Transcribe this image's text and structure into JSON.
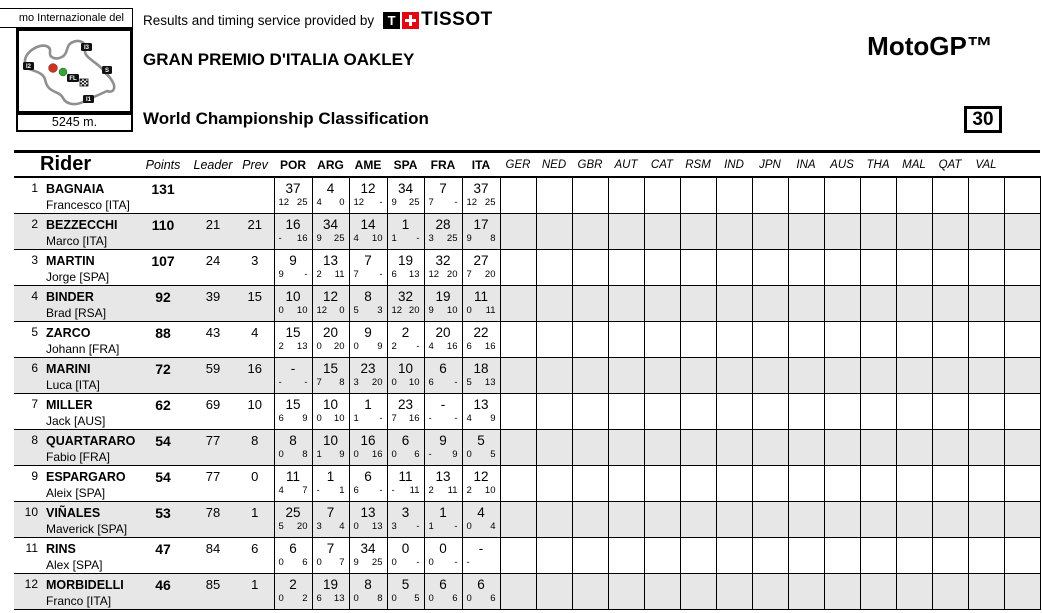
{
  "header": {
    "provider_text": "Results and timing service provided by",
    "tissot": {
      "t_letter": "T",
      "word": "TISSOT"
    },
    "event_title": "GRAN PREMIO D'ITALIA OAKLEY",
    "subtitle": "World Championship Classification",
    "class_label": "MotoGP™",
    "page_number": "30"
  },
  "map": {
    "circuit_name_fragment": "mo Internazionale del",
    "length": "5245 m.",
    "markers": {
      "i1": "I1",
      "i2": "I2",
      "i3": "I3",
      "s": "S",
      "fl": "FL"
    }
  },
  "colors": {
    "row_stripe": "#e7e7e7",
    "tissot_red": "#e30613",
    "track_grey": "#8f8f8f",
    "status_red": "#cc3322",
    "status_green": "#3aa13a"
  },
  "table": {
    "rider_header": "Rider",
    "stat_headers": [
      "Points",
      "Leader",
      "Prev"
    ],
    "completed_races": [
      "POR",
      "ARG",
      "AME",
      "SPA",
      "FRA",
      "ITA"
    ],
    "upcoming_races": [
      "GER",
      "NED",
      "GBR",
      "AUT",
      "CAT",
      "RSM",
      "IND",
      "JPN",
      "INA",
      "AUS",
      "THA",
      "MAL",
      "QAT",
      "VAL"
    ],
    "rows": [
      {
        "pos": "1",
        "surname": "BAGNAIA",
        "firstname": "Francesco [ITA]",
        "points": "131",
        "leader": "",
        "prev": "",
        "races": [
          {
            "total": "37",
            "sprint": "12",
            "race": "25"
          },
          {
            "total": "4",
            "sprint": "4",
            "race": "0"
          },
          {
            "total": "12",
            "sprint": "12",
            "race": "-"
          },
          {
            "total": "34",
            "sprint": "9",
            "race": "25"
          },
          {
            "total": "7",
            "sprint": "7",
            "race": "-"
          },
          {
            "total": "37",
            "sprint": "12",
            "race": "25"
          }
        ]
      },
      {
        "pos": "2",
        "surname": "BEZZECCHI",
        "firstname": "Marco [ITA]",
        "points": "110",
        "leader": "21",
        "prev": "21",
        "races": [
          {
            "total": "16",
            "sprint": "-",
            "race": "16"
          },
          {
            "total": "34",
            "sprint": "9",
            "race": "25"
          },
          {
            "total": "14",
            "sprint": "4",
            "race": "10"
          },
          {
            "total": "1",
            "sprint": "1",
            "race": "-"
          },
          {
            "total": "28",
            "sprint": "3",
            "race": "25"
          },
          {
            "total": "17",
            "sprint": "9",
            "race": "8"
          }
        ]
      },
      {
        "pos": "3",
        "surname": "MARTIN",
        "firstname": "Jorge [SPA]",
        "points": "107",
        "leader": "24",
        "prev": "3",
        "races": [
          {
            "total": "9",
            "sprint": "9",
            "race": "-"
          },
          {
            "total": "13",
            "sprint": "2",
            "race": "11"
          },
          {
            "total": "7",
            "sprint": "7",
            "race": "-"
          },
          {
            "total": "19",
            "sprint": "6",
            "race": "13"
          },
          {
            "total": "32",
            "sprint": "12",
            "race": "20"
          },
          {
            "total": "27",
            "sprint": "7",
            "race": "20"
          }
        ]
      },
      {
        "pos": "4",
        "surname": "BINDER",
        "firstname": "Brad [RSA]",
        "points": "92",
        "leader": "39",
        "prev": "15",
        "races": [
          {
            "total": "10",
            "sprint": "0",
            "race": "10"
          },
          {
            "total": "12",
            "sprint": "12",
            "race": "0"
          },
          {
            "total": "8",
            "sprint": "5",
            "race": "3"
          },
          {
            "total": "32",
            "sprint": "12",
            "race": "20"
          },
          {
            "total": "19",
            "sprint": "9",
            "race": "10"
          },
          {
            "total": "11",
            "sprint": "0",
            "race": "11"
          }
        ]
      },
      {
        "pos": "5",
        "surname": "ZARCO",
        "firstname": "Johann [FRA]",
        "points": "88",
        "leader": "43",
        "prev": "4",
        "races": [
          {
            "total": "15",
            "sprint": "2",
            "race": "13"
          },
          {
            "total": "20",
            "sprint": "0",
            "race": "20"
          },
          {
            "total": "9",
            "sprint": "0",
            "race": "9"
          },
          {
            "total": "2",
            "sprint": "2",
            "race": "-"
          },
          {
            "total": "20",
            "sprint": "4",
            "race": "16"
          },
          {
            "total": "22",
            "sprint": "6",
            "race": "16"
          }
        ]
      },
      {
        "pos": "6",
        "surname": "MARINI",
        "firstname": "Luca [ITA]",
        "points": "72",
        "leader": "59",
        "prev": "16",
        "races": [
          {
            "total": "-",
            "sprint": "-",
            "race": "-"
          },
          {
            "total": "15",
            "sprint": "7",
            "race": "8"
          },
          {
            "total": "23",
            "sprint": "3",
            "race": "20"
          },
          {
            "total": "10",
            "sprint": "0",
            "race": "10"
          },
          {
            "total": "6",
            "sprint": "6",
            "race": "-"
          },
          {
            "total": "18",
            "sprint": "5",
            "race": "13"
          }
        ]
      },
      {
        "pos": "7",
        "surname": "MILLER",
        "firstname": "Jack [AUS]",
        "points": "62",
        "leader": "69",
        "prev": "10",
        "races": [
          {
            "total": "15",
            "sprint": "6",
            "race": "9"
          },
          {
            "total": "10",
            "sprint": "0",
            "race": "10"
          },
          {
            "total": "1",
            "sprint": "1",
            "race": "-"
          },
          {
            "total": "23",
            "sprint": "7",
            "race": "16"
          },
          {
            "total": "-",
            "sprint": "-",
            "race": "-"
          },
          {
            "total": "13",
            "sprint": "4",
            "race": "9"
          }
        ]
      },
      {
        "pos": "8",
        "surname": "QUARTARARO",
        "firstname": "Fabio [FRA]",
        "points": "54",
        "leader": "77",
        "prev": "8",
        "races": [
          {
            "total": "8",
            "sprint": "0",
            "race": "8"
          },
          {
            "total": "10",
            "sprint": "1",
            "race": "9"
          },
          {
            "total": "16",
            "sprint": "0",
            "race": "16"
          },
          {
            "total": "6",
            "sprint": "0",
            "race": "6"
          },
          {
            "total": "9",
            "sprint": "-",
            "race": "9"
          },
          {
            "total": "5",
            "sprint": "0",
            "race": "5"
          }
        ]
      },
      {
        "pos": "9",
        "surname": "ESPARGARO",
        "firstname": "Aleix [SPA]",
        "points": "54",
        "leader": "77",
        "prev": "0",
        "races": [
          {
            "total": "11",
            "sprint": "4",
            "race": "7"
          },
          {
            "total": "1",
            "sprint": "-",
            "race": "1"
          },
          {
            "total": "6",
            "sprint": "6",
            "race": "-"
          },
          {
            "total": "11",
            "sprint": "-",
            "race": "11"
          },
          {
            "total": "13",
            "sprint": "2",
            "race": "11"
          },
          {
            "total": "12",
            "sprint": "2",
            "race": "10"
          }
        ]
      },
      {
        "pos": "10",
        "surname": "VIÑALES",
        "firstname": "Maverick [SPA]",
        "points": "53",
        "leader": "78",
        "prev": "1",
        "races": [
          {
            "total": "25",
            "sprint": "5",
            "race": "20"
          },
          {
            "total": "7",
            "sprint": "3",
            "race": "4"
          },
          {
            "total": "13",
            "sprint": "0",
            "race": "13"
          },
          {
            "total": "3",
            "sprint": "3",
            "race": "-"
          },
          {
            "total": "1",
            "sprint": "1",
            "race": "-"
          },
          {
            "total": "4",
            "sprint": "0",
            "race": "4"
          }
        ]
      },
      {
        "pos": "11",
        "surname": "RINS",
        "firstname": "Alex [SPA]",
        "points": "47",
        "leader": "84",
        "prev": "6",
        "races": [
          {
            "total": "6",
            "sprint": "0",
            "race": "6"
          },
          {
            "total": "7",
            "sprint": "0",
            "race": "7"
          },
          {
            "total": "34",
            "sprint": "9",
            "race": "25"
          },
          {
            "total": "0",
            "sprint": "0",
            "race": "-"
          },
          {
            "total": "0",
            "sprint": "0",
            "race": "-"
          },
          {
            "total": "-",
            "sprint": "-",
            "race": ""
          }
        ]
      },
      {
        "pos": "12",
        "surname": "MORBIDELLI",
        "firstname": "Franco [ITA]",
        "points": "46",
        "leader": "85",
        "prev": "1",
        "races": [
          {
            "total": "2",
            "sprint": "0",
            "race": "2"
          },
          {
            "total": "19",
            "sprint": "6",
            "race": "13"
          },
          {
            "total": "8",
            "sprint": "0",
            "race": "8"
          },
          {
            "total": "5",
            "sprint": "0",
            "race": "5"
          },
          {
            "total": "6",
            "sprint": "0",
            "race": "6"
          },
          {
            "total": "6",
            "sprint": "0",
            "race": "6"
          }
        ]
      }
    ]
  }
}
